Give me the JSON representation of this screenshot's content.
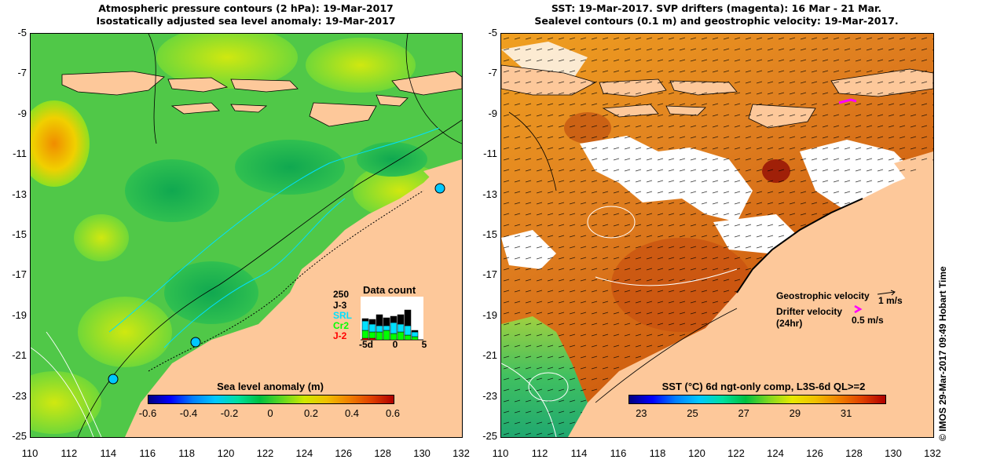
{
  "left": {
    "title_line1": "Atmospheric pressure contours (2 hPa): 19-Mar-2017",
    "title_line2": "Isostatically adjusted sea level anomaly: 19-Mar-2017",
    "y_ticks": [
      "-5",
      "-7",
      "-9",
      "-11",
      "-13",
      "-15",
      "-17",
      "-19",
      "-21",
      "-23",
      "-25"
    ],
    "x_ticks": [
      "110",
      "112",
      "114",
      "116",
      "118",
      "120",
      "122",
      "124",
      "126",
      "128",
      "130",
      "132"
    ],
    "colorbar": {
      "title": "Sea level anomaly (m)",
      "labels": [
        "-0.6",
        "-0.4",
        "-0.2",
        "0",
        "0.2",
        "0.4",
        "0.6"
      ],
      "range": [
        -0.6,
        0.6
      ]
    },
    "data_count": {
      "title": "Data count",
      "max_label": "250",
      "satellites": [
        {
          "name": "J-3",
          "color": "#000000"
        },
        {
          "name": "SRL",
          "color": "#00e0ff"
        },
        {
          "name": "Cr2",
          "color": "#00ff00"
        },
        {
          "name": "J-2",
          "color": "#ff0000"
        }
      ],
      "x_labels": [
        "-5d",
        "0",
        "5"
      ]
    }
  },
  "right": {
    "title_line1": "SST: 19-Mar-2017. SVP drifters (magenta): 16 Mar - 21 Mar.",
    "title_line2": "Sealevel contours (0.1 m) and geostrophic velocity: 19-Mar-2017.",
    "y_ticks": [
      "-5",
      "-7",
      "-9",
      "-11",
      "-13",
      "-15",
      "-17",
      "-19",
      "-21",
      "-23",
      "-25"
    ],
    "x_ticks": [
      "110",
      "112",
      "114",
      "116",
      "118",
      "120",
      "122",
      "124",
      "126",
      "128",
      "130",
      "132"
    ],
    "colorbar": {
      "title": "SST (°C) 6d ngt-only comp, L3S-6d QL>=2",
      "labels": [
        "23",
        "25",
        "27",
        "29",
        "31"
      ],
      "range": [
        22.5,
        32.5
      ]
    },
    "legend": {
      "geo_label": "Geostrophic velocity",
      "geo_scale": "1 m/s",
      "drifter_label_1": "Drifter velocity",
      "drifter_label_2": "(24hr)",
      "drifter_scale": "0.5 m/s"
    },
    "credit": "© IMOS 29-Mar-2017 09:49 Hobart Time"
  },
  "colors": {
    "land": "#fdc89a",
    "cloud": "#ffffff",
    "magenta": "#ff00ff"
  }
}
